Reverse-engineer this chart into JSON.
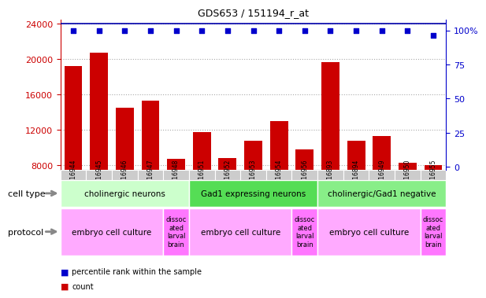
{
  "title": "GDS653 / 151194_r_at",
  "samples": [
    "GSM16944",
    "GSM16945",
    "GSM16946",
    "GSM16947",
    "GSM16948",
    "GSM16951",
    "GSM16952",
    "GSM16953",
    "GSM16954",
    "GSM16956",
    "GSM16893",
    "GSM16894",
    "GSM16949",
    "GSM16950",
    "GSM16955"
  ],
  "counts": [
    19200,
    20700,
    14500,
    15300,
    8700,
    11800,
    8800,
    10800,
    13000,
    9800,
    19700,
    10800,
    11300,
    8300,
    8000
  ],
  "percentile_ranks": [
    100,
    100,
    100,
    100,
    100,
    100,
    100,
    100,
    100,
    100,
    100,
    100,
    100,
    100,
    96
  ],
  "bar_color": "#cc0000",
  "dot_color": "#0000cc",
  "ylim_left": [
    7500,
    24500
  ],
  "ylim_right": [
    -2,
    108
  ],
  "yticks_left": [
    8000,
    12000,
    16000,
    20000,
    24000
  ],
  "yticks_right": [
    0,
    25,
    50,
    75,
    100
  ],
  "cell_type_groups": [
    {
      "label": "cholinergic neurons",
      "start": 0,
      "end": 4,
      "color": "#ccffcc"
    },
    {
      "label": "Gad1 expressing neurons",
      "start": 5,
      "end": 9,
      "color": "#55dd55"
    },
    {
      "label": "cholinergic/Gad1 negative",
      "start": 10,
      "end": 14,
      "color": "#88ee88"
    }
  ],
  "protocol_groups": [
    {
      "label": "embryo cell culture",
      "start": 0,
      "end": 3,
      "color": "#ffaaff"
    },
    {
      "label": "dissoc\nated\nlarval\nbrain",
      "start": 4,
      "end": 4,
      "color": "#ff77ff"
    },
    {
      "label": "embryo cell culture",
      "start": 5,
      "end": 8,
      "color": "#ffaaff"
    },
    {
      "label": "dissoc\nated\nlarval\nbrain",
      "start": 9,
      "end": 9,
      "color": "#ff77ff"
    },
    {
      "label": "embryo cell culture",
      "start": 10,
      "end": 13,
      "color": "#ffaaff"
    },
    {
      "label": "dissoc\nated\nlarval\nbrain",
      "start": 14,
      "end": 14,
      "color": "#ff77ff"
    }
  ],
  "grid_color": "#aaaaaa",
  "background_color": "#ffffff",
  "xticklabel_bg": "#cccccc",
  "arrow_color": "#888888"
}
